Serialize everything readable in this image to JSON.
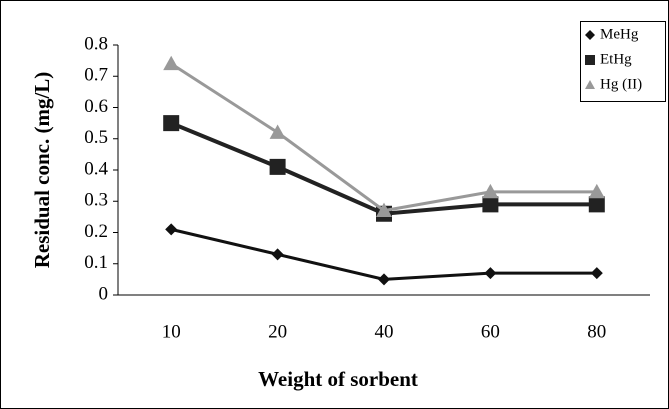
{
  "chart_data": {
    "type": "line",
    "x_label": "Weight of sorbent",
    "y_label": "Residual conc. (mg/L)",
    "categories": [
      "10",
      "20",
      "40",
      "60",
      "80"
    ],
    "series": [
      {
        "name": "MeHg",
        "color": "#111111",
        "marker": "diamond",
        "values": [
          0.21,
          0.13,
          0.05,
          0.07,
          0.07
        ]
      },
      {
        "name": "EtHg",
        "color": "#222222",
        "marker": "square",
        "values": [
          0.55,
          0.41,
          0.26,
          0.29,
          0.29
        ]
      },
      {
        "name": "Hg (II)",
        "color": "#999999",
        "marker": "triangle",
        "values": [
          0.74,
          0.52,
          0.27,
          0.33,
          0.33
        ]
      }
    ],
    "ylim": [
      0,
      0.8
    ],
    "yticks": [
      0,
      0.1,
      0.2,
      0.3,
      0.4,
      0.5,
      0.6,
      0.7,
      0.8
    ],
    "legend": "top-right"
  }
}
